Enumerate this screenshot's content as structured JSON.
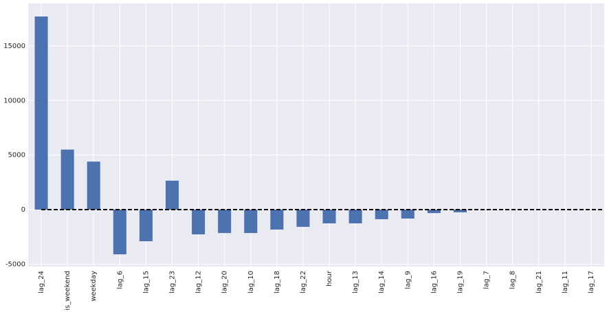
{
  "chart_data": {
    "type": "bar",
    "categories": [
      "lag_24",
      "is_weekend",
      "weekday",
      "lag_6",
      "lag_15",
      "lag_23",
      "lag_12",
      "lag_20",
      "lag_10",
      "lag_18",
      "lag_22",
      "hour",
      "lag_13",
      "lag_14",
      "lag_9",
      "lag_16",
      "lag_19",
      "lag_7",
      "lag_8",
      "lag_21",
      "lag_11",
      "lag_17"
    ],
    "values": [
      17700,
      5500,
      4400,
      -4100,
      -2900,
      2650,
      -2270,
      -2150,
      -2150,
      -1830,
      -1580,
      -1260,
      -1260,
      -880,
      -820,
      -320,
      -250,
      -20,
      -10,
      -5,
      -3,
      -2
    ],
    "color": "#4c72b0",
    "ylim": [
      -5230,
      18900
    ],
    "yticks": [
      -5000,
      0,
      5000,
      10000,
      15000
    ],
    "grid": true,
    "reference_line": 0
  }
}
